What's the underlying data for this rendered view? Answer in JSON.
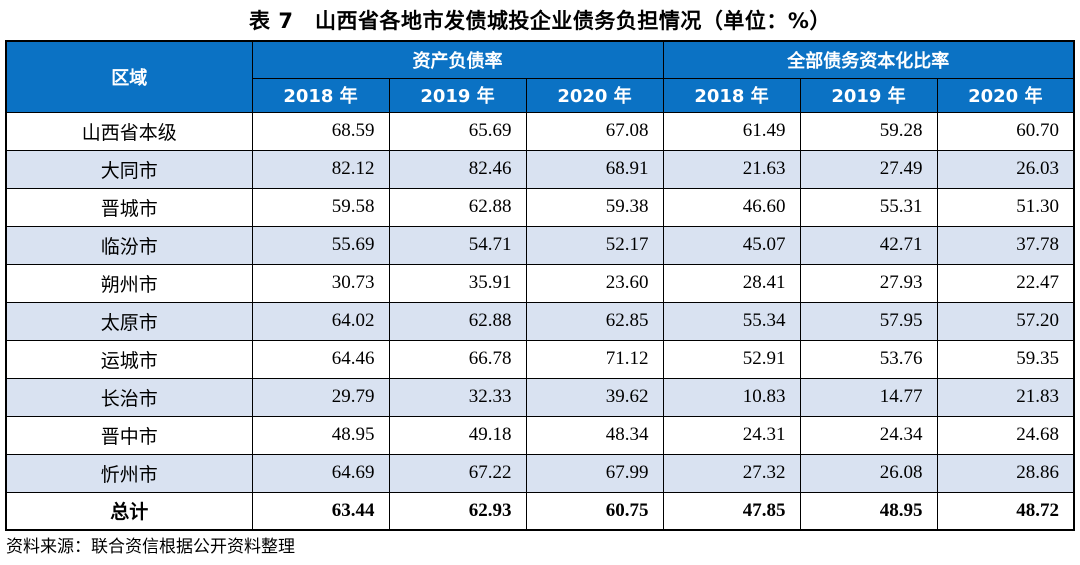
{
  "title": "表 7　山西省各地市发债城投企业债务负担情况（单位：%）",
  "table": {
    "region_header": "区域",
    "group_headers": [
      {
        "label": "资产负债率",
        "years": [
          "2018 年",
          "2019 年",
          "2020 年"
        ]
      },
      {
        "label": "全部债务资本化比率",
        "years": [
          "2018 年",
          "2019 年",
          "2020 年"
        ]
      }
    ],
    "rows": [
      {
        "region": "山西省本级",
        "values": [
          "68.59",
          "65.69",
          "67.08",
          "61.49",
          "59.28",
          "60.70"
        ],
        "bold": false
      },
      {
        "region": "大同市",
        "values": [
          "82.12",
          "82.46",
          "68.91",
          "21.63",
          "27.49",
          "26.03"
        ],
        "bold": false
      },
      {
        "region": "晋城市",
        "values": [
          "59.58",
          "62.88",
          "59.38",
          "46.60",
          "55.31",
          "51.30"
        ],
        "bold": false
      },
      {
        "region": "临汾市",
        "values": [
          "55.69",
          "54.71",
          "52.17",
          "45.07",
          "42.71",
          "37.78"
        ],
        "bold": false
      },
      {
        "region": "朔州市",
        "values": [
          "30.73",
          "35.91",
          "23.60",
          "28.41",
          "27.93",
          "22.47"
        ],
        "bold": false
      },
      {
        "region": "太原市",
        "values": [
          "64.02",
          "62.88",
          "62.85",
          "55.34",
          "57.95",
          "57.20"
        ],
        "bold": false
      },
      {
        "region": "运城市",
        "values": [
          "64.46",
          "66.78",
          "71.12",
          "52.91",
          "53.76",
          "59.35"
        ],
        "bold": false
      },
      {
        "region": "长治市",
        "values": [
          "29.79",
          "32.33",
          "39.62",
          "10.83",
          "14.77",
          "21.83"
        ],
        "bold": false
      },
      {
        "region": "晋中市",
        "values": [
          "48.95",
          "49.18",
          "48.34",
          "24.31",
          "24.34",
          "24.68"
        ],
        "bold": false
      },
      {
        "region": "忻州市",
        "values": [
          "64.69",
          "67.22",
          "67.99",
          "27.32",
          "26.08",
          "28.86"
        ],
        "bold": false
      },
      {
        "region": "总计",
        "values": [
          "63.44",
          "62.93",
          "60.75",
          "47.85",
          "48.95",
          "48.72"
        ],
        "bold": true
      }
    ]
  },
  "footer": {
    "source": "资料来源：联合资信根据公开资料整理"
  },
  "colors": {
    "header_bg": "#0B72C4",
    "header_text": "#FFFFFF",
    "alt_row_bg": "#D9E2F1",
    "border": "#000000",
    "text": "#000000"
  }
}
